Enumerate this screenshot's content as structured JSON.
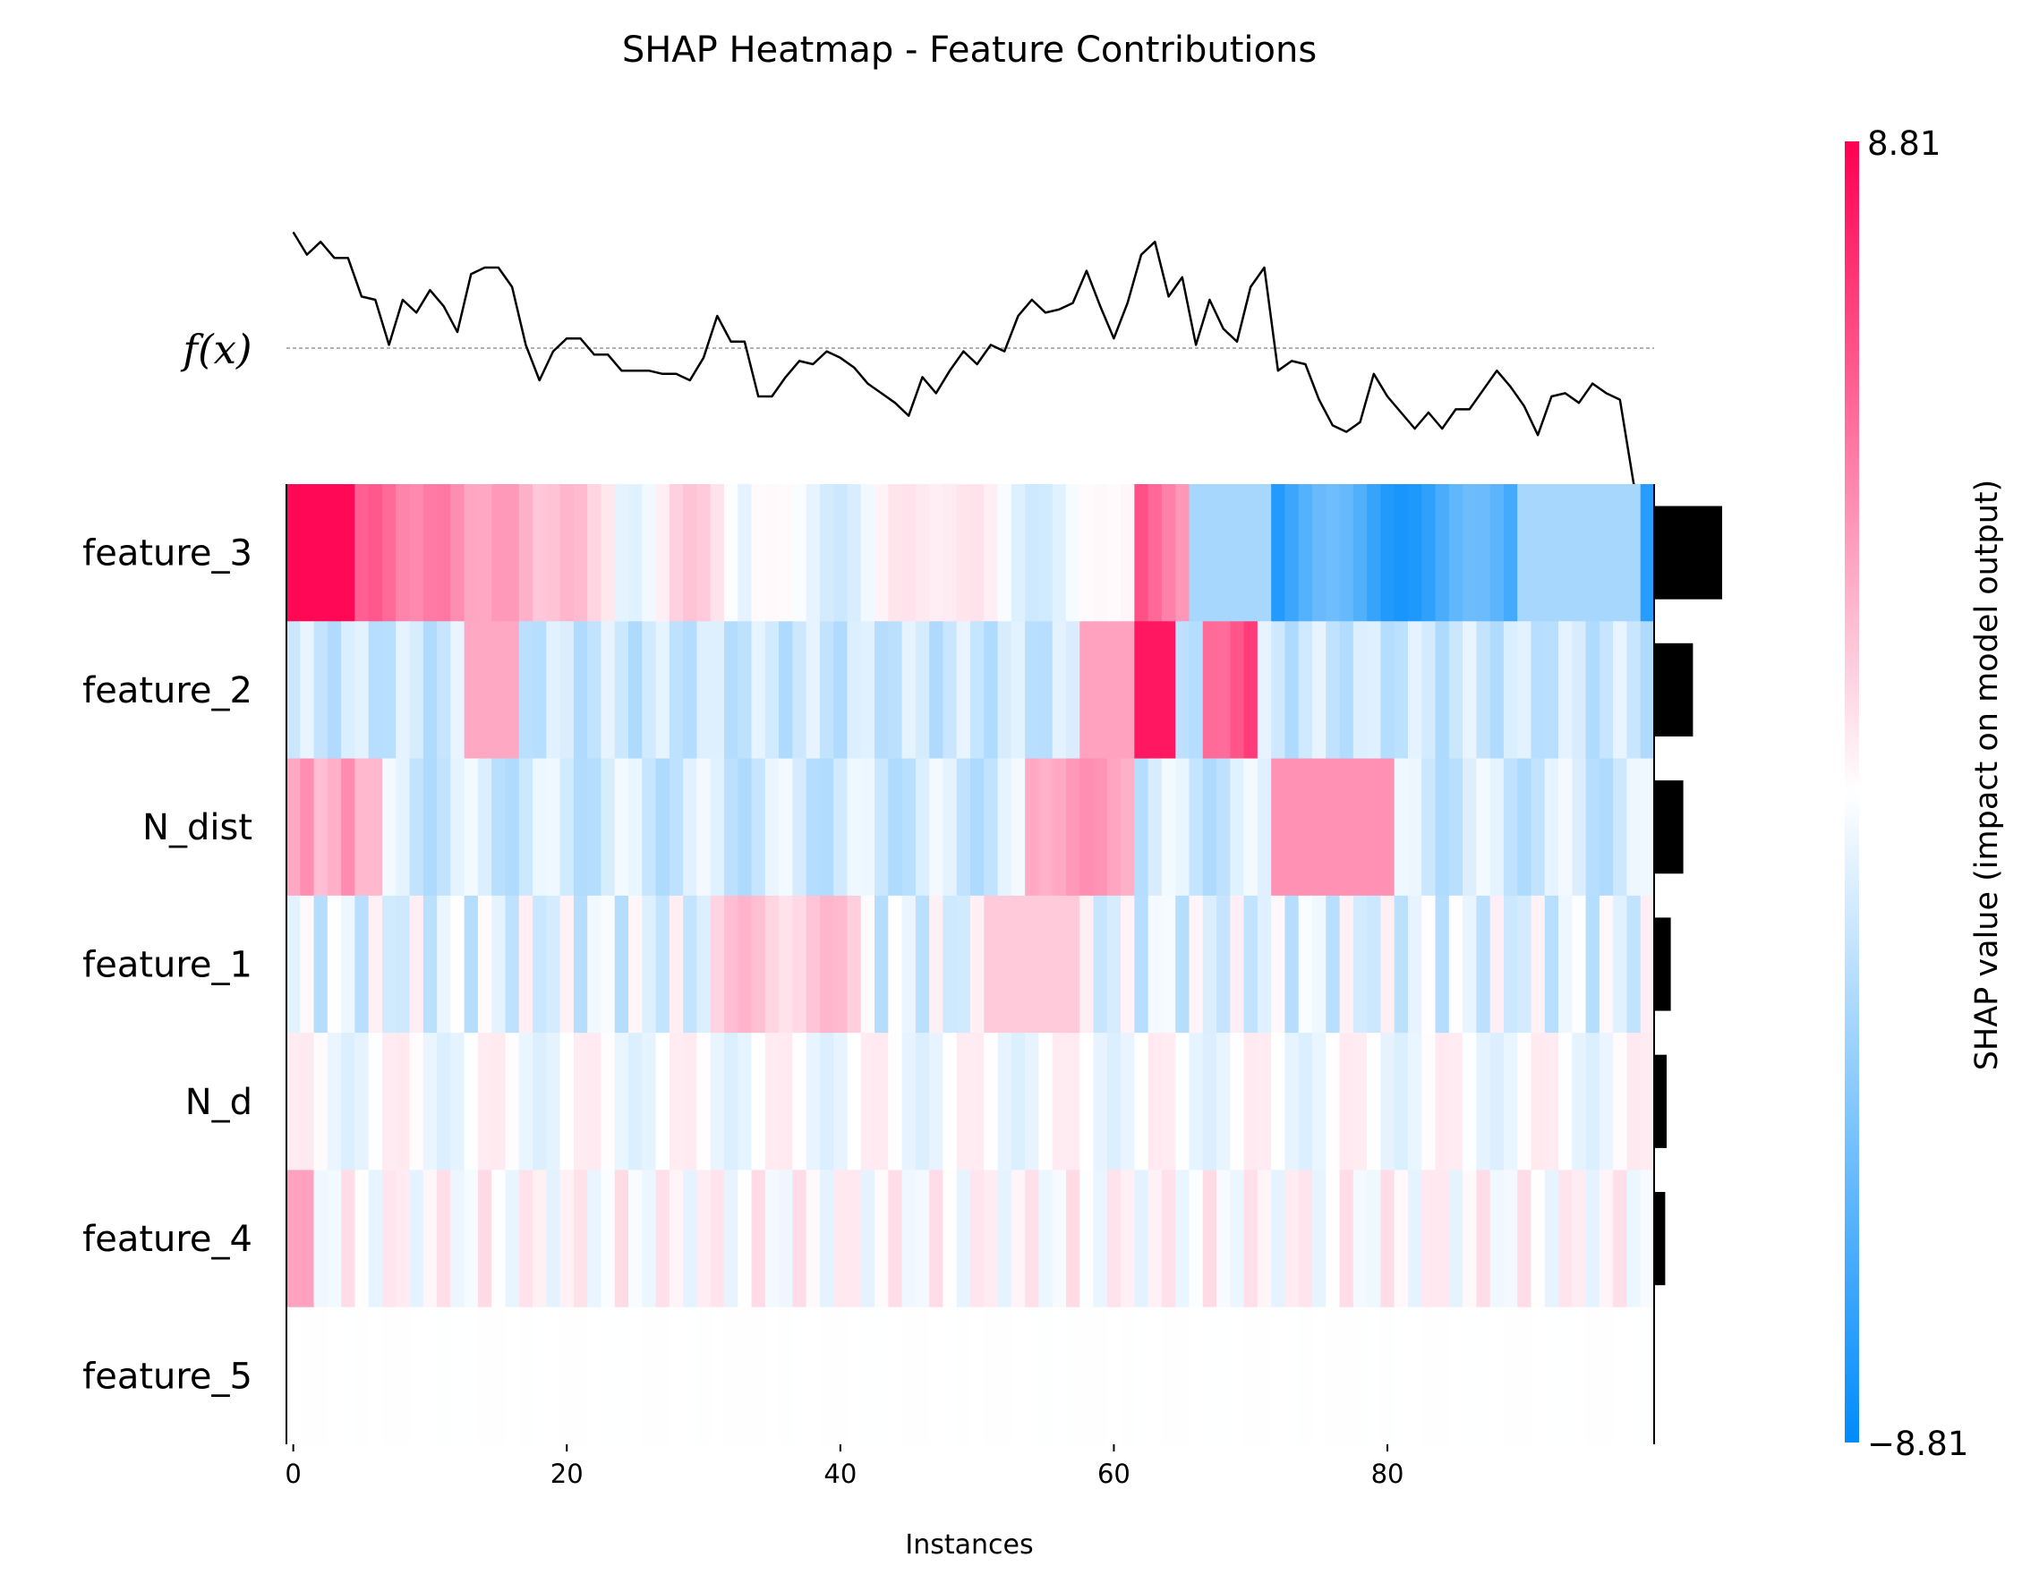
{
  "chart_data": {
    "type": "heatmap",
    "title": "SHAP Heatmap - Feature Contributions",
    "xlabel": "Instances",
    "xticks": [
      0,
      20,
      40,
      60,
      80
    ],
    "num_instances": 100,
    "features": [
      "feature_3",
      "feature_2",
      "N_dist",
      "feature_1",
      "N_d",
      "feature_4",
      "feature_5"
    ],
    "fx_label": "f(x)",
    "colorbar": {
      "label": "SHAP value (impact on model output)",
      "max_label": "8.81",
      "min_label": "−8.81",
      "vmin": -8.81,
      "vmax": 8.81
    },
    "colors": {
      "positive": "#ff0051",
      "negative": "#008bfb",
      "neutral": "#ffffff",
      "bars": "#000000",
      "fx_line": "#000000",
      "baseline": "#999999"
    },
    "mean_abs_shap": [
      4.9,
      2.8,
      2.1,
      1.2,
      0.9,
      0.8,
      0.0
    ],
    "fx_values": [
      3.6,
      2.9,
      3.3,
      2.8,
      2.8,
      1.6,
      1.5,
      0.1,
      1.5,
      1.1,
      1.8,
      1.3,
      0.5,
      2.3,
      2.5,
      2.5,
      1.9,
      0.1,
      -1.0,
      -0.1,
      0.3,
      0.3,
      -0.2,
      -0.2,
      -0.7,
      -0.7,
      -0.7,
      -0.8,
      -0.8,
      -1.0,
      -0.3,
      1.0,
      0.2,
      0.2,
      -1.5,
      -1.5,
      -0.9,
      -0.4,
      -0.5,
      -0.1,
      -0.3,
      -0.6,
      -1.1,
      -1.4,
      -1.7,
      -2.1,
      -0.9,
      -1.4,
      -0.7,
      -0.1,
      -0.5,
      0.1,
      -0.1,
      1.0,
      1.5,
      1.1,
      1.2,
      1.4,
      2.4,
      1.3,
      0.3,
      1.4,
      2.9,
      3.3,
      1.6,
      2.2,
      0.1,
      1.5,
      0.6,
      0.2,
      1.9,
      2.5,
      -0.7,
      -0.4,
      -0.5,
      -1.6,
      -2.4,
      -2.6,
      -2.3,
      -0.8,
      -1.5,
      -2.0,
      -2.5,
      -2.0,
      -2.5,
      -1.9,
      -1.9,
      -1.3,
      -0.7,
      -1.2,
      -1.8,
      -2.7,
      -1.5,
      -1.4,
      -1.7,
      -1.1,
      -1.4,
      -1.6,
      -4.2,
      -5.5
    ]
  }
}
